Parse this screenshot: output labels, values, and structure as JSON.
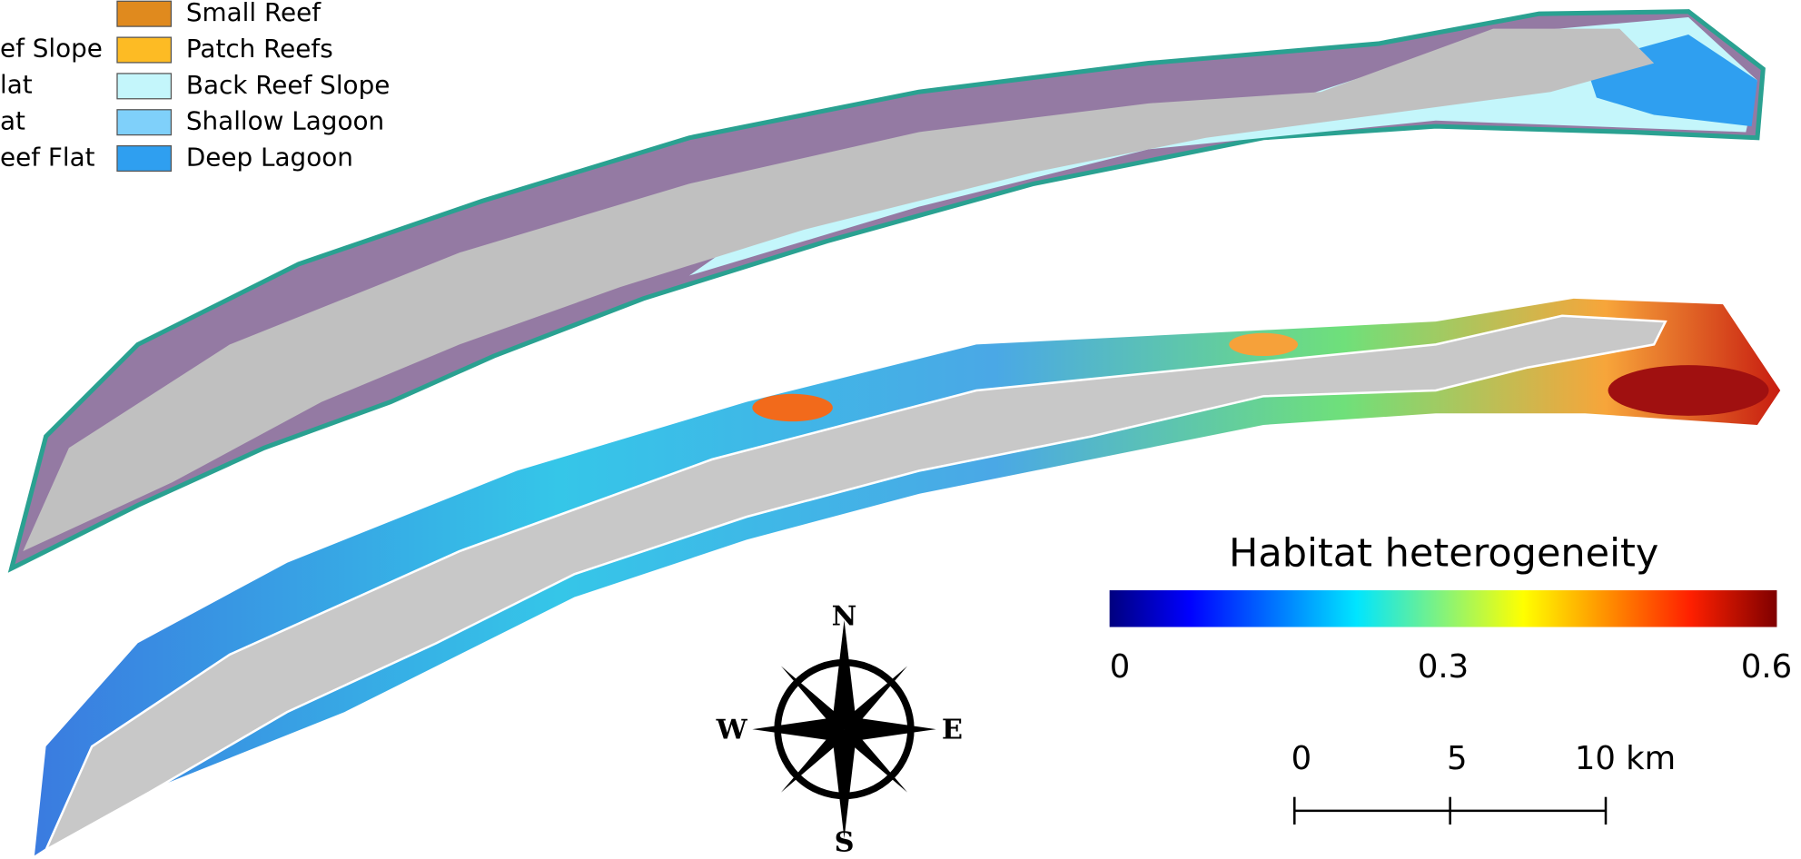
{
  "legend": {
    "left_items": [
      "ef Slope",
      "lat",
      "at",
      "eef Flat"
    ],
    "items": [
      {
        "label": "Small Reef",
        "color": "#e08a1e"
      },
      {
        "label": "Patch Reefs",
        "color": "#fdbb24"
      },
      {
        "label": "Back Reef Slope",
        "color": "#c4f6fb"
      },
      {
        "label": "Shallow Lagoon",
        "color": "#7fd0fa"
      },
      {
        "label": "Deep Lagoon",
        "color": "#2f9ff0"
      }
    ]
  },
  "colorbar": {
    "title": "Habitat heterogeneity",
    "lim": [
      0,
      0.6
    ],
    "ticks": [
      0,
      0.3,
      0.6
    ]
  },
  "scale_bar": {
    "lim": [
      0,
      10
    ],
    "ticks": [
      0,
      5,
      {
        "value": 10,
        "label": "10 km"
      }
    ]
  },
  "compass": {
    "n": "N",
    "s": "S",
    "e": "E",
    "w": "W"
  }
}
